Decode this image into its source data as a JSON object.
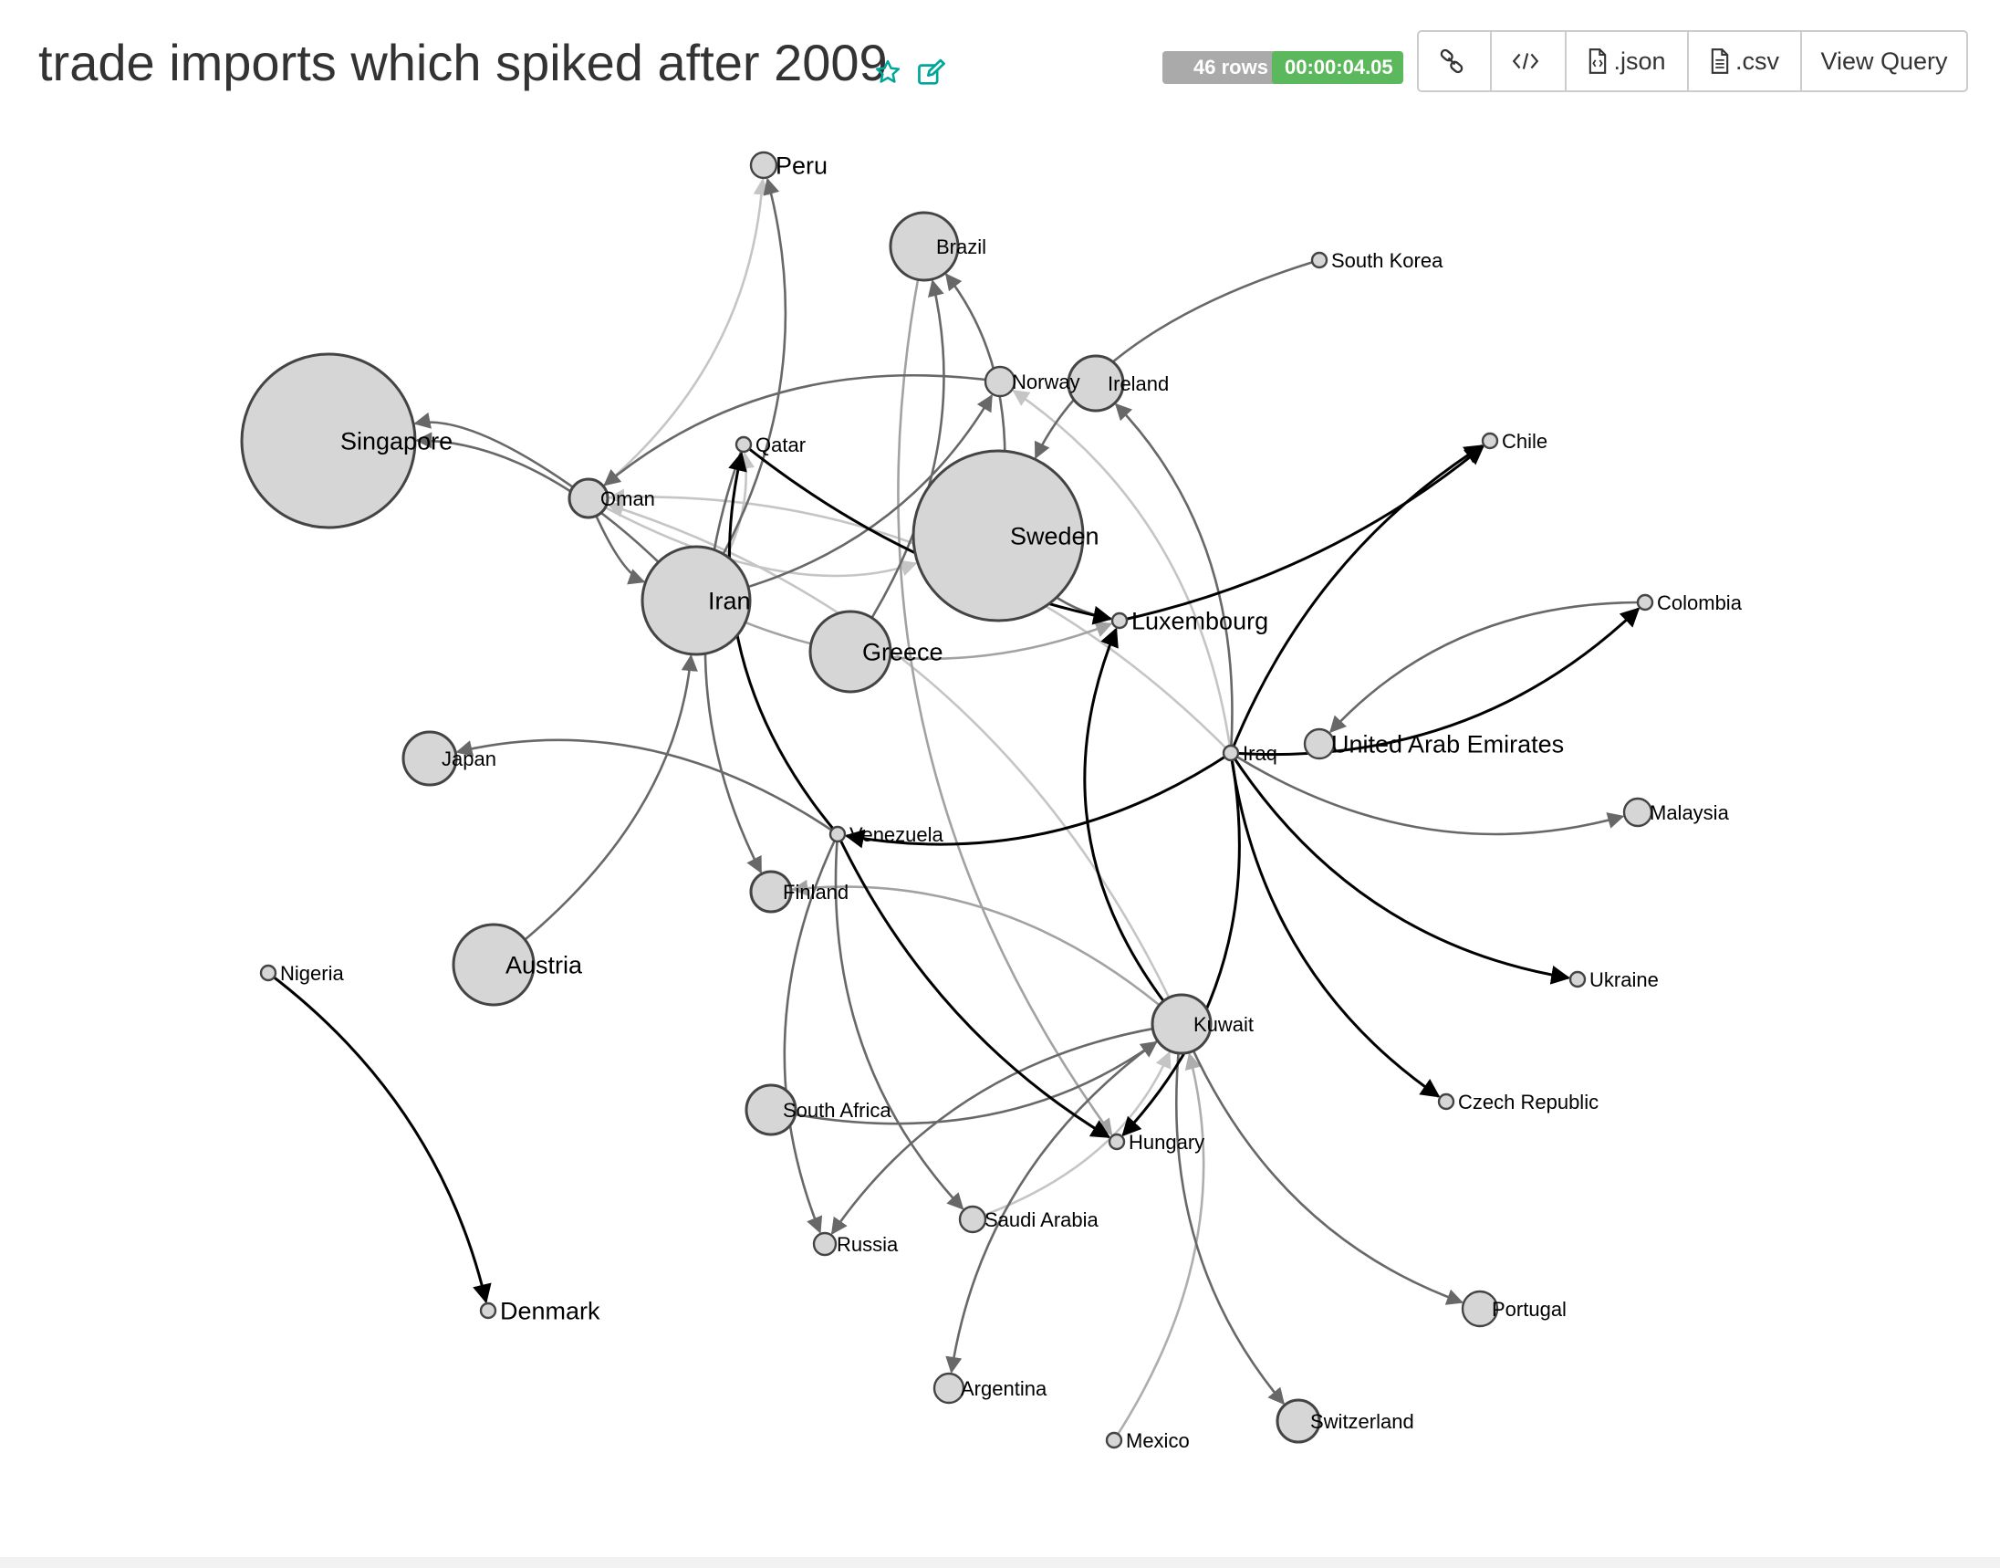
{
  "header": {
    "title": "trade imports which spiked after 2009",
    "rows_badge": "46 rows",
    "duration_badge": "00:00:04.05",
    "icons": {
      "favorite": "star-outline-icon",
      "edit": "edit-pencil-icon"
    },
    "colors": {
      "icon_accent": "#00A699",
      "rows_badge": "#AAAAAA",
      "duration_badge": "#5CB85C"
    }
  },
  "toolbar": {
    "items": [
      {
        "name": "link-button",
        "icon": "link-icon",
        "label": ""
      },
      {
        "name": "embed-code-button",
        "icon": "code-icon",
        "label": ""
      },
      {
        "name": "json-button",
        "icon": "file-code-icon",
        "label": ".json"
      },
      {
        "name": "csv-button",
        "icon": "file-text-icon",
        "label": ".csv"
      },
      {
        "name": "view-query-button",
        "icon": "",
        "label": "View Query"
      }
    ]
  },
  "chart_data": {
    "type": "directed-force-graph",
    "nodes": [
      {
        "id": "Singapore",
        "label": "Singapore",
        "size": 9.5
      },
      {
        "id": "Sweden",
        "label": "Sweden",
        "size": 9.3
      },
      {
        "id": "Iran",
        "label": "Iran",
        "size": 5.9
      },
      {
        "id": "Greece",
        "label": "Greece",
        "size": 4.4
      },
      {
        "id": "Austria",
        "label": "Austria",
        "size": 4.4
      },
      {
        "id": "Brazil",
        "label": "Brazil",
        "size": 3.7
      },
      {
        "id": "Kuwait",
        "label": "Kuwait",
        "size": 3.2
      },
      {
        "id": "Ireland",
        "label": "Ireland",
        "size": 3.0
      },
      {
        "id": "Japan",
        "label": "Japan",
        "size": 2.9
      },
      {
        "id": "South Africa",
        "label": "South Africa",
        "size": 2.7
      },
      {
        "id": "Oman",
        "label": "Oman",
        "size": 2.1
      },
      {
        "id": "Finland",
        "label": "Finland",
        "size": 2.2
      },
      {
        "id": "Switzerland",
        "label": "Switzerland",
        "size": 2.3
      },
      {
        "id": "Portugal",
        "label": "Portugal",
        "size": 1.9
      },
      {
        "id": "Norway",
        "label": "Norway",
        "size": 1.6
      },
      {
        "id": "United Arab Emirates",
        "label": "United Arab Emirates",
        "size": 1.6
      },
      {
        "id": "Argentina",
        "label": "Argentina",
        "size": 1.6
      },
      {
        "id": "Malaysia",
        "label": "Malaysia",
        "size": 1.5
      },
      {
        "id": "Peru",
        "label": "Peru",
        "size": 1.4
      },
      {
        "id": "Saudi Arabia",
        "label": "Saudi Arabia",
        "size": 1.4
      },
      {
        "id": "Russia",
        "label": "Russia",
        "size": 1.2
      },
      {
        "id": "Luxembourg",
        "label": "Luxembourg",
        "size": 0.8
      },
      {
        "id": "Qatar",
        "label": "Qatar",
        "size": 0.8
      },
      {
        "id": "Venezuela",
        "label": "Venezuela",
        "size": 0.8
      },
      {
        "id": "Iraq",
        "label": "Iraq",
        "size": 0.8
      },
      {
        "id": "Hungary",
        "label": "Hungary",
        "size": 0.8
      },
      {
        "id": "South Korea",
        "label": "South Korea",
        "size": 0.8
      },
      {
        "id": "Chile",
        "label": "Chile",
        "size": 0.8
      },
      {
        "id": "Colombia",
        "label": "Colombia",
        "size": 0.8
      },
      {
        "id": "Ukraine",
        "label": "Ukraine",
        "size": 0.8
      },
      {
        "id": "Czech Republic",
        "label": "Czech Republic",
        "size": 0.8
      },
      {
        "id": "Nigeria",
        "label": "Nigeria",
        "size": 0.8
      },
      {
        "id": "Denmark",
        "label": "Denmark",
        "size": 0.8
      },
      {
        "id": "Mexico",
        "label": "Mexico",
        "size": 0.8
      }
    ],
    "links": [
      {
        "source": "Nigeria",
        "target": "Denmark",
        "weight": 1.0
      },
      {
        "source": "Iraq",
        "target": "Chile",
        "weight": 1.0
      },
      {
        "source": "Iraq",
        "target": "Colombia",
        "weight": 1.0
      },
      {
        "source": "Iraq",
        "target": "Venezuela",
        "weight": 1.0
      },
      {
        "source": "Iraq",
        "target": "Ukraine",
        "weight": 1.0
      },
      {
        "source": "Iraq",
        "target": "Czech Republic",
        "weight": 1.0
      },
      {
        "source": "Iraq",
        "target": "Hungary",
        "weight": 1.0
      },
      {
        "source": "Iraq",
        "target": "Malaysia",
        "weight": 0.55
      },
      {
        "source": "Iraq",
        "target": "Ireland",
        "weight": 0.55
      },
      {
        "source": "Iraq",
        "target": "Norway",
        "weight": 0.15
      },
      {
        "source": "Iraq",
        "target": "Oman",
        "weight": 0.15
      },
      {
        "source": "Venezuela",
        "target": "Qatar",
        "weight": 1.0
      },
      {
        "source": "Venezuela",
        "target": "Hungary",
        "weight": 1.0
      },
      {
        "source": "Venezuela",
        "target": "Japan",
        "weight": 0.55
      },
      {
        "source": "Venezuela",
        "target": "Russia",
        "weight": 0.55
      },
      {
        "source": "Venezuela",
        "target": "Saudi Arabia",
        "weight": 0.55
      },
      {
        "source": "Kuwait",
        "target": "Luxembourg",
        "weight": 1.0
      },
      {
        "source": "Kuwait",
        "target": "Switzerland",
        "weight": 0.55
      },
      {
        "source": "Kuwait",
        "target": "Portugal",
        "weight": 0.55
      },
      {
        "source": "Kuwait",
        "target": "Argentina",
        "weight": 0.55
      },
      {
        "source": "Kuwait",
        "target": "Russia",
        "weight": 0.55
      },
      {
        "source": "Kuwait",
        "target": "Finland",
        "weight": 0.3
      },
      {
        "source": "Kuwait",
        "target": "Oman",
        "weight": 0.15
      },
      {
        "source": "South Africa",
        "target": "Kuwait",
        "weight": 0.55
      },
      {
        "source": "Mexico",
        "target": "Kuwait",
        "weight": 0.25
      },
      {
        "source": "Saudi Arabia",
        "target": "Kuwait",
        "weight": 0.15
      },
      {
        "source": "Qatar",
        "target": "Luxembourg",
        "weight": 1.0
      },
      {
        "source": "Qatar",
        "target": "Finland",
        "weight": 0.55
      },
      {
        "source": "Luxembourg",
        "target": "Chile",
        "weight": 1.0
      },
      {
        "source": "Sweden",
        "target": "Luxembourg",
        "weight": 0.55
      },
      {
        "source": "Sweden",
        "target": "Brazil",
        "weight": 0.55
      },
      {
        "source": "South Korea",
        "target": "Sweden",
        "weight": 0.55
      },
      {
        "source": "Colombia",
        "target": "United Arab Emirates",
        "weight": 0.55
      },
      {
        "source": "Iran",
        "target": "Singapore",
        "weight": 0.55
      },
      {
        "source": "Iran",
        "target": "Peru",
        "weight": 0.55
      },
      {
        "source": "Iran",
        "target": "Norway",
        "weight": 0.55
      },
      {
        "source": "Oman",
        "target": "Singapore",
        "weight": 0.55
      },
      {
        "source": "Oman",
        "target": "Iran",
        "weight": 0.55
      },
      {
        "source": "Oman",
        "target": "Peru",
        "weight": 0.15
      },
      {
        "source": "Austria",
        "target": "Iran",
        "weight": 0.55
      },
      {
        "source": "Greece",
        "target": "Brazil",
        "weight": 0.55
      },
      {
        "source": "Norway",
        "target": "Oman",
        "weight": 0.55
      },
      {
        "source": "Iran",
        "target": "Luxembourg",
        "weight": 0.3
      },
      {
        "source": "Brazil",
        "target": "Hungary",
        "weight": 0.3
      },
      {
        "source": "Oman",
        "target": "Sweden",
        "weight": 0.15
      },
      {
        "source": "Iran",
        "target": "Qatar",
        "weight": 0.15
      }
    ]
  }
}
